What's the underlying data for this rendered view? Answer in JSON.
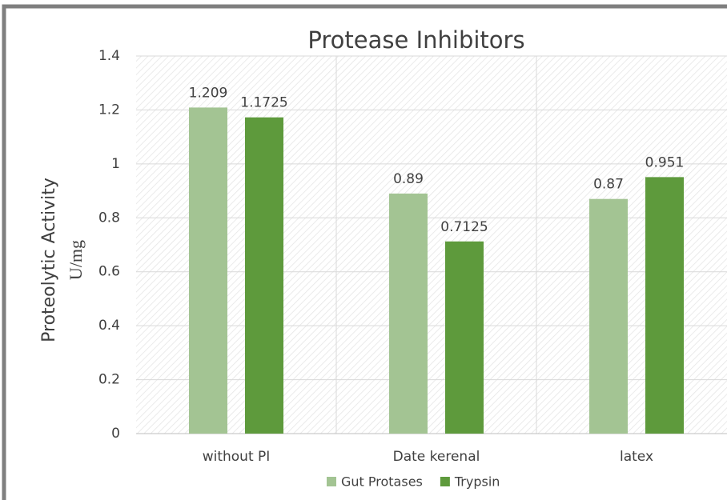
{
  "chart_data": {
    "type": "bar",
    "title": "Protease Inhibitors",
    "ylabel": "Proteolytic Activity",
    "yunit": "U/mg",
    "categories": [
      "without PI",
      "Date kerenal",
      "latex"
    ],
    "series": [
      {
        "name": "Gut Protases",
        "color": "#a3c493",
        "values": [
          1.209,
          0.89,
          0.87
        ]
      },
      {
        "name": "Trypsin",
        "color": "#5e9a3c",
        "values": [
          1.1725,
          0.7125,
          0.951
        ]
      }
    ],
    "ylim": [
      0,
      1.4
    ],
    "yticks": [
      0,
      0.2,
      0.4,
      0.6,
      0.8,
      1,
      1.2,
      1.4
    ],
    "grid": true,
    "legend": "bottom"
  }
}
